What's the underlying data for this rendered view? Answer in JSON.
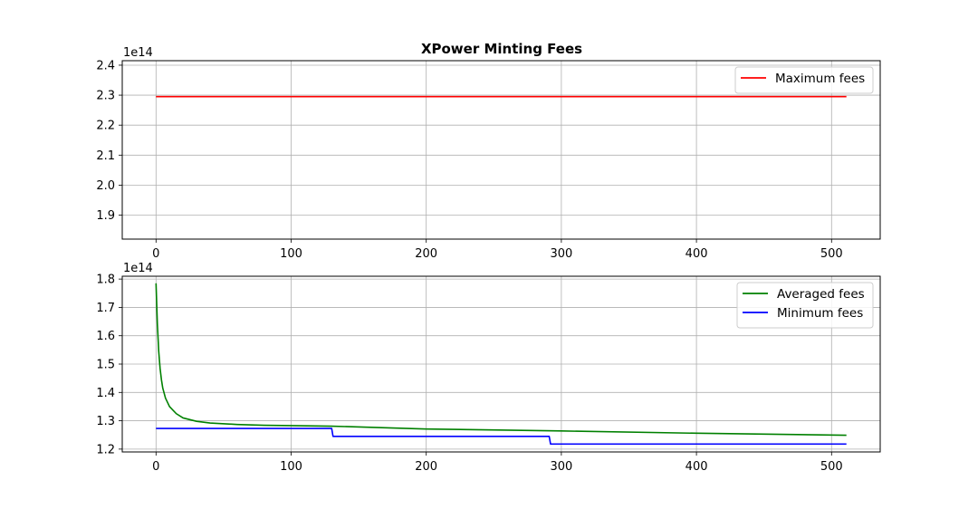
{
  "chart_data": [
    {
      "type": "line",
      "title": "XPower Minting Fees",
      "offset_label": "1e14",
      "xlim": [
        -25,
        536
      ],
      "ylim": [
        1.82,
        2.415
      ],
      "xticks": [
        0,
        100,
        200,
        300,
        400,
        500
      ],
      "yticks": [
        1.9,
        2.0,
        2.1,
        2.2,
        2.3,
        2.4
      ],
      "grid": true,
      "legend_position": "upper-right",
      "series": [
        {
          "name": "Maximum fees",
          "color": "#ff0000",
          "x": [
            0,
            511
          ],
          "y": [
            2.295,
            2.295
          ]
        }
      ]
    },
    {
      "type": "line",
      "title": "",
      "offset_label": "1e14",
      "xlim": [
        -25,
        536
      ],
      "ylim": [
        1.19,
        1.81
      ],
      "xticks": [
        0,
        100,
        200,
        300,
        400,
        500
      ],
      "yticks": [
        1.2,
        1.3,
        1.4,
        1.5,
        1.6,
        1.7,
        1.8
      ],
      "grid": true,
      "legend_position": "upper-right",
      "series": [
        {
          "name": "Averaged fees",
          "color": "#008000",
          "x": [
            0,
            1,
            2,
            3,
            4,
            5,
            7,
            10,
            15,
            20,
            30,
            40,
            60,
            80,
            100,
            130,
            200,
            300,
            400,
            511
          ],
          "y": [
            1.785,
            1.64,
            1.545,
            1.485,
            1.445,
            1.415,
            1.38,
            1.35,
            1.325,
            1.31,
            1.298,
            1.292,
            1.287,
            1.284,
            1.283,
            1.281,
            1.271,
            1.264,
            1.256,
            1.249
          ]
        },
        {
          "name": "Minimum fees",
          "color": "#0000ff",
          "x": [
            0,
            130,
            131,
            291,
            292,
            511
          ],
          "y": [
            1.273,
            1.273,
            1.245,
            1.245,
            1.218,
            1.218
          ]
        }
      ]
    }
  ]
}
